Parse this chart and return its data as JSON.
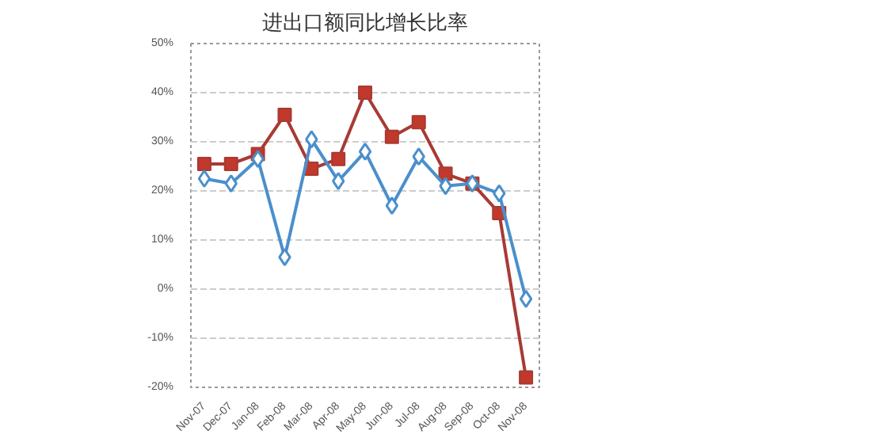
{
  "chart_data": {
    "type": "line",
    "title": "进出口额同比增长比率",
    "categories": [
      "Nov-07",
      "Dec-07",
      "Jan-08",
      "Feb-08",
      "Mar-08",
      "Apr-08",
      "May-08",
      "Jun-08",
      "Jul-08",
      "Aug-08",
      "Sep-08",
      "Oct-08",
      "Nov-08"
    ],
    "series": [
      {
        "color": "#4a8fcc",
        "marker": "diamond",
        "values": [
          22.5,
          21.5,
          26.5,
          6.5,
          30.5,
          22,
          28,
          17,
          27,
          21,
          21.5,
          19.5,
          -2
        ]
      },
      {
        "color": "#a83a34",
        "marker": "square",
        "values": [
          25.5,
          25.5,
          27.5,
          35.5,
          24.5,
          26.5,
          40,
          31,
          34,
          23.5,
          21.5,
          15.5,
          -18
        ]
      }
    ],
    "ylim": [
      -20,
      50
    ],
    "yticks": [
      {
        "value": -20,
        "label": "-20%"
      },
      {
        "value": -10,
        "label": "-10%"
      },
      {
        "value": 0,
        "label": "0%"
      },
      {
        "value": 10,
        "label": "10%"
      },
      {
        "value": 20,
        "label": "20%"
      },
      {
        "value": 30,
        "label": "30%"
      },
      {
        "value": 40,
        "label": "40%"
      },
      {
        "value": 50,
        "label": "50%"
      }
    ],
    "grid": "y",
    "line_style": "solid"
  }
}
